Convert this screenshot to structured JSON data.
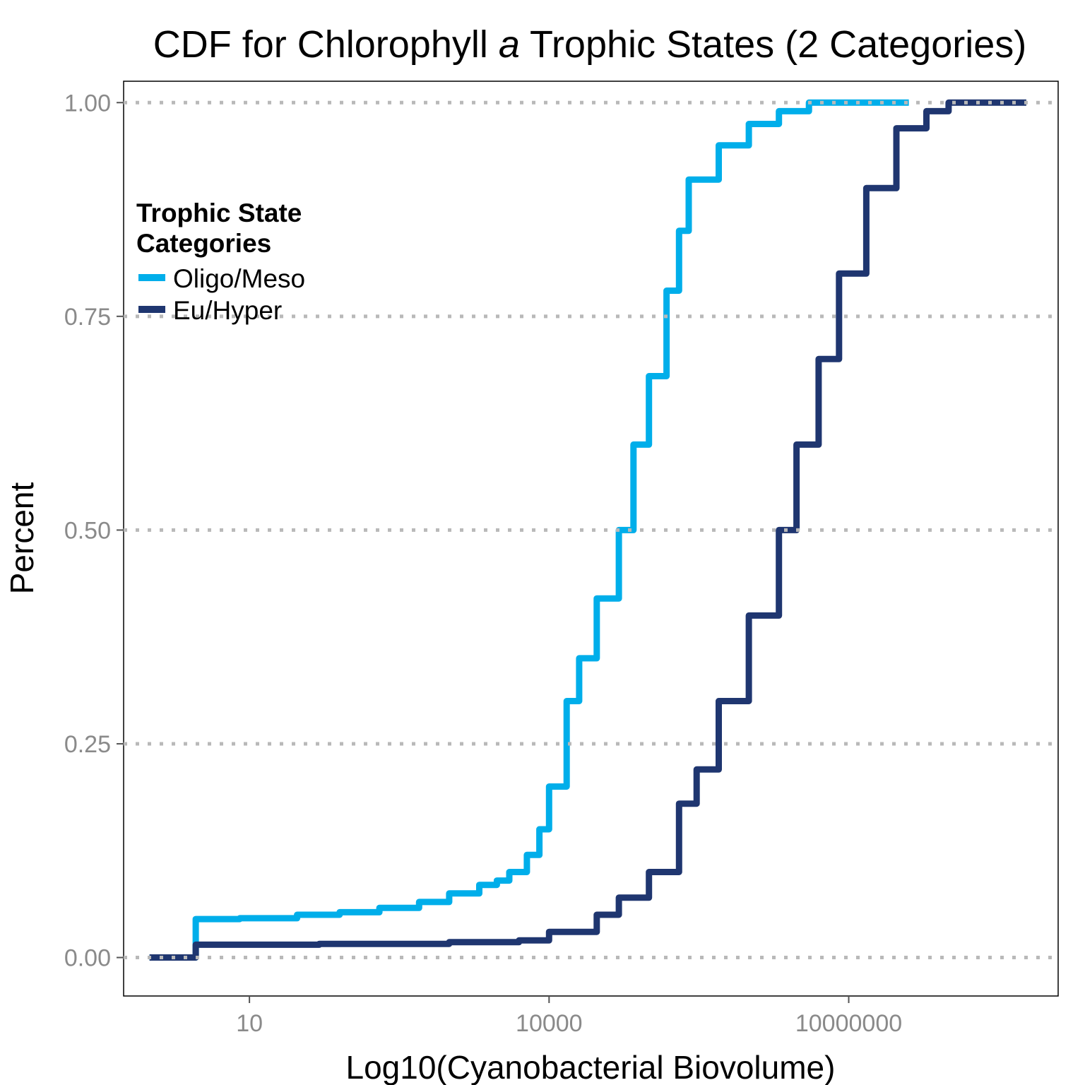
{
  "chart_data": {
    "type": "line",
    "title_parts": {
      "before": "CDF for Chlorophyll ",
      "italic": "a",
      "after": " Trophic States (2 Categories)"
    },
    "xlabel": "Log10(Cyanobacterial Biovolume)",
    "ylabel": "Percent",
    "x_scale": "log10",
    "xlim": [
      0.55,
      1250000000
    ],
    "ylim": [
      -0.045,
      1.025
    ],
    "x_ticks": [
      {
        "value": 10,
        "label": "10"
      },
      {
        "value": 10000,
        "label": "10000"
      },
      {
        "value": 10000000,
        "label": "10000000"
      }
    ],
    "y_ticks": [
      {
        "value": 0,
        "label": "0.00"
      },
      {
        "value": 0.25,
        "label": "0.25"
      },
      {
        "value": 0.5,
        "label": "0.50"
      },
      {
        "value": 0.75,
        "label": "0.75"
      },
      {
        "value": 1,
        "label": "1.00"
      }
    ],
    "grid": "horizontal dotted major lines",
    "legend": {
      "title_lines": [
        "Trophic State",
        "Categories"
      ],
      "placement": "top-left inside plot"
    },
    "series": [
      {
        "name": "Oligo/Meso",
        "color": "#00aeea",
        "step": true,
        "points": [
          [
            1.0,
            0
          ],
          [
            2.9,
            0
          ],
          [
            2.9,
            0.045
          ],
          [
            8,
            0.046
          ],
          [
            30,
            0.05
          ],
          [
            80,
            0.053
          ],
          [
            200,
            0.058
          ],
          [
            500,
            0.065
          ],
          [
            1000,
            0.075
          ],
          [
            2000,
            0.085
          ],
          [
            3000,
            0.09
          ],
          [
            4000,
            0.1
          ],
          [
            6000,
            0.12
          ],
          [
            8000,
            0.15
          ],
          [
            10000,
            0.2
          ],
          [
            15000,
            0.3
          ],
          [
            20000,
            0.35
          ],
          [
            30000,
            0.42
          ],
          [
            50000,
            0.5
          ],
          [
            70000,
            0.6
          ],
          [
            100000,
            0.68
          ],
          [
            150000,
            0.78
          ],
          [
            200000,
            0.85
          ],
          [
            250000,
            0.91
          ],
          [
            500000,
            0.95
          ],
          [
            1000000,
            0.975
          ],
          [
            2000000,
            0.99
          ],
          [
            4000000,
            1.0
          ],
          [
            8000000,
            1.0
          ],
          [
            20000000,
            1.0
          ],
          [
            40000000,
            1.0
          ]
        ]
      },
      {
        "name": "Eu/Hyper",
        "color": "#1f3670",
        "step": true,
        "points": [
          [
            1.0,
            0
          ],
          [
            2.9,
            0
          ],
          [
            2.9,
            0.015
          ],
          [
            50,
            0.016
          ],
          [
            1000,
            0.018
          ],
          [
            5000,
            0.02
          ],
          [
            10000,
            0.03
          ],
          [
            30000,
            0.05
          ],
          [
            50000,
            0.07
          ],
          [
            100000,
            0.1
          ],
          [
            200000,
            0.18
          ],
          [
            300000,
            0.22
          ],
          [
            500000,
            0.3
          ],
          [
            1000000,
            0.4
          ],
          [
            2000000,
            0.5
          ],
          [
            3000000,
            0.6
          ],
          [
            5000000,
            0.7
          ],
          [
            8000000,
            0.8
          ],
          [
            15000000,
            0.9
          ],
          [
            30000000,
            0.97
          ],
          [
            60000000,
            0.99
          ],
          [
            100000000,
            1.0
          ],
          [
            300000000,
            1.0
          ],
          [
            600000000,
            1.0
          ]
        ]
      }
    ]
  }
}
